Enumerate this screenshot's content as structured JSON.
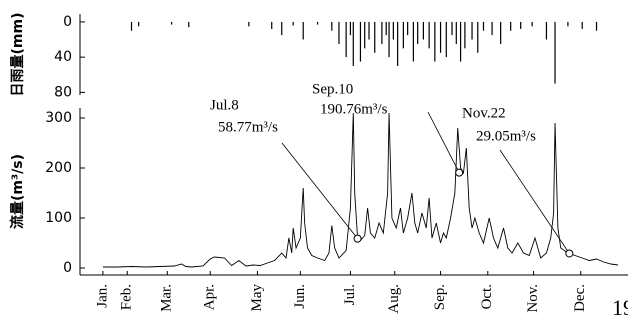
{
  "chart_data": [
    {
      "type": "bar",
      "ylabel": "日雨量(mm)",
      "color": "#000000",
      "inverted": true,
      "x": [
        20,
        25,
        48,
        60,
        102,
        118,
        125,
        133,
        140,
        150,
        160,
        165,
        170,
        173,
        175,
        180,
        183,
        186,
        190,
        195,
        198,
        200,
        203,
        206,
        210,
        213,
        217,
        220,
        224,
        228,
        232,
        236,
        240,
        244,
        247,
        250,
        253,
        258,
        262,
        266,
        272,
        278,
        285,
        292,
        300,
        310,
        316,
        325,
        335,
        345
      ],
      "values": [
        10,
        5,
        3,
        6,
        5,
        8,
        15,
        4,
        20,
        3,
        10,
        25,
        40,
        15,
        50,
        45,
        30,
        20,
        35,
        25,
        15,
        40,
        20,
        50,
        30,
        15,
        45,
        25,
        20,
        30,
        45,
        35,
        40,
        15,
        25,
        45,
        30,
        20,
        35,
        10,
        15,
        25,
        10,
        8,
        5,
        20,
        70,
        5,
        8,
        10
      ],
      "xlim": [
        -16,
        367
      ],
      "ylim": [
        -9,
        83
      ],
      "yticks": [
        0,
        40,
        80
      ]
    },
    {
      "type": "line",
      "ylabel": "流量(m³/s)",
      "color": "#000000",
      "x": [
        0,
        10,
        20,
        30,
        40,
        50,
        55,
        58,
        62,
        70,
        75,
        78,
        85,
        90,
        95,
        100,
        105,
        110,
        115,
        120,
        125,
        128,
        130,
        132,
        133,
        135,
        138,
        140,
        141,
        143,
        146,
        150,
        155,
        158,
        160,
        162,
        165,
        170,
        173,
        175,
        176,
        178,
        180,
        183,
        185,
        187,
        190,
        193,
        196,
        199,
        200,
        202,
        205,
        208,
        210,
        213,
        216,
        218,
        220,
        223,
        226,
        228,
        230,
        233,
        236,
        238,
        240,
        243,
        246,
        248,
        250,
        252,
        254,
        256,
        258,
        260,
        263,
        266,
        270,
        273,
        276,
        280,
        283,
        286,
        290,
        294,
        298,
        302,
        306,
        310,
        313,
        315,
        316,
        318,
        320,
        325,
        330,
        335,
        340,
        345,
        350,
        355,
        360
      ],
      "values": [
        2,
        2,
        3,
        2,
        3,
        4,
        8,
        3,
        2,
        4,
        18,
        22,
        20,
        5,
        15,
        4,
        6,
        5,
        10,
        15,
        30,
        20,
        60,
        30,
        80,
        40,
        60,
        160,
        90,
        40,
        25,
        20,
        15,
        30,
        85,
        40,
        20,
        35,
        120,
        310,
        150,
        60,
        55,
        65,
        120,
        70,
        60,
        90,
        70,
        150,
        310,
        100,
        80,
        120,
        70,
        100,
        150,
        90,
        70,
        110,
        80,
        140,
        60,
        90,
        50,
        70,
        60,
        100,
        150,
        280,
        200,
        190,
        240,
        120,
        80,
        100,
        70,
        50,
        100,
        60,
        40,
        80,
        40,
        30,
        50,
        30,
        25,
        60,
        20,
        30,
        60,
        110,
        290,
        80,
        40,
        30,
        25,
        20,
        15,
        18,
        12,
        8,
        6
      ],
      "xlim": [
        -16,
        367
      ],
      "ylim": [
        -14,
        320
      ],
      "yticks": [
        0,
        100,
        200,
        300
      ],
      "xticks": [
        {
          "value": 0,
          "label": "Jan."
        },
        {
          "value": 17,
          "label": "Feb."
        },
        {
          "value": 45,
          "label": "Mar."
        },
        {
          "value": 75,
          "label": "Apr."
        },
        {
          "value": 108,
          "label": "May"
        },
        {
          "value": 138,
          "label": "Jun."
        },
        {
          "value": 173,
          "label": "Jul."
        },
        {
          "value": 204,
          "label": "Aug."
        },
        {
          "value": 236,
          "label": "Sep."
        },
        {
          "value": 269,
          "label": "Oct."
        },
        {
          "value": 301,
          "label": "Nov."
        },
        {
          "value": 334,
          "label": "Dec."
        }
      ],
      "annotations": [
        {
          "label": "Jul.8",
          "x": 178,
          "value": 58.77,
          "value_label": "58.77m³/s"
        },
        {
          "label": "Sep.10",
          "x": 249,
          "value": 190.76,
          "value_label": "190.76m³/s"
        },
        {
          "label": "Nov.22",
          "x": 326,
          "value": 29.05,
          "value_label": "29.05m³/s"
        }
      ]
    }
  ],
  "year_label": "19"
}
